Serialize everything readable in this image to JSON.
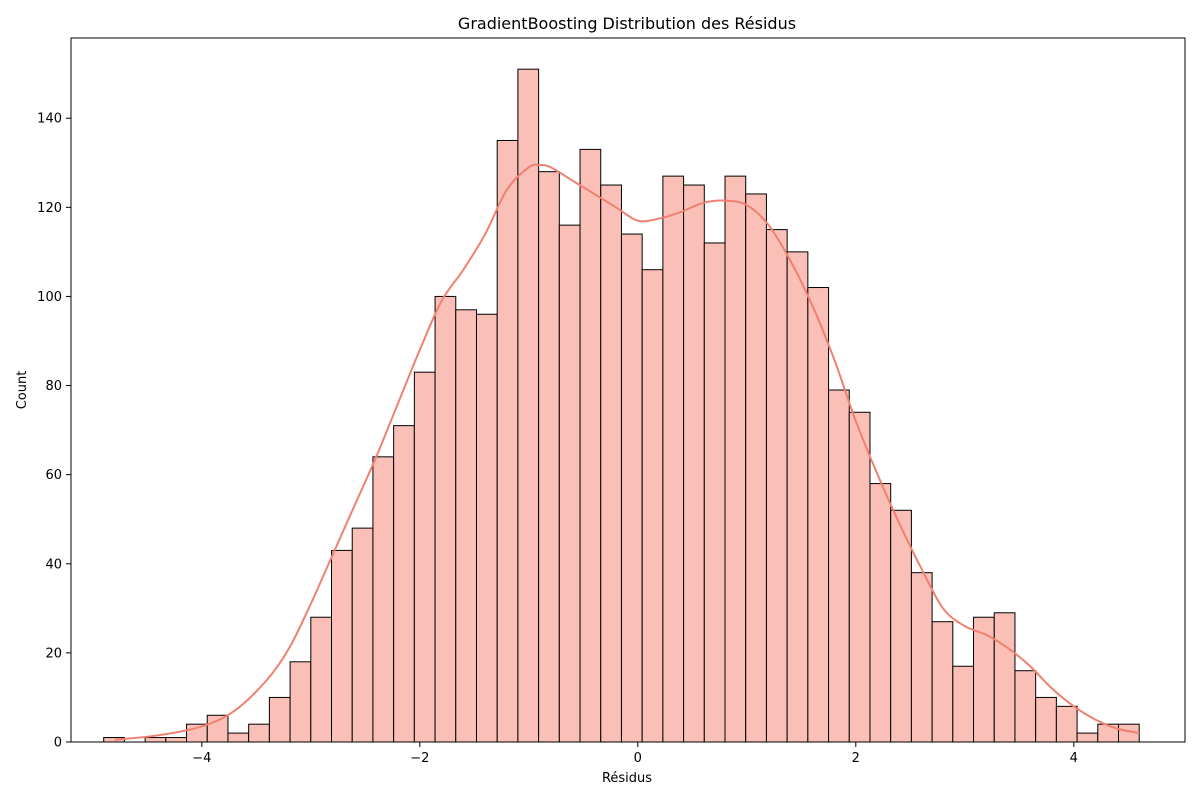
{
  "chart_data": {
    "type": "bar",
    "title": "GradientBoosting Distribution des Résidus",
    "xlabel": "Résidus",
    "ylabel": "Count",
    "xlim": [
      -5.2,
      5.02
    ],
    "ylim": [
      0,
      158
    ],
    "xticks": [
      -4,
      -2,
      0,
      2,
      4
    ],
    "xtick_labels": [
      "−4",
      "−2",
      "0",
      "2",
      "4"
    ],
    "yticks": [
      0,
      20,
      40,
      60,
      80,
      100,
      120,
      140
    ],
    "bin_start": -4.9,
    "bin_width": 0.19,
    "counts": [
      1,
      0,
      1,
      1,
      4,
      6,
      2,
      4,
      10,
      18,
      28,
      43,
      48,
      64,
      71,
      83,
      100,
      97,
      96,
      135,
      151,
      128,
      116,
      133,
      125,
      114,
      106,
      127,
      125,
      112,
      127,
      123,
      115,
      110,
      102,
      79,
      74,
      58,
      52,
      38,
      27,
      17,
      28,
      29,
      16,
      10,
      8,
      2,
      4,
      4
    ],
    "kde": {
      "x": [
        -4.8,
        -4.4,
        -4.0,
        -3.7,
        -3.4,
        -3.2,
        -3.0,
        -2.8,
        -2.6,
        -2.4,
        -2.2,
        -2.0,
        -1.8,
        -1.6,
        -1.4,
        -1.2,
        -1.0,
        -0.9,
        -0.8,
        -0.6,
        -0.4,
        -0.2,
        0.0,
        0.2,
        0.4,
        0.6,
        0.8,
        1.0,
        1.2,
        1.4,
        1.6,
        1.8,
        2.0,
        2.2,
        2.4,
        2.6,
        2.8,
        3.0,
        3.2,
        3.4,
        3.6,
        3.8,
        4.0,
        4.2,
        4.4,
        4.6
      ],
      "y": [
        0.5,
        1.5,
        3.5,
        7,
        14,
        21,
        31,
        42,
        53,
        64,
        76,
        88,
        99,
        106,
        114,
        124,
        129,
        129.5,
        129,
        126,
        123,
        120,
        117,
        117.5,
        119,
        121,
        121.5,
        120.5,
        116,
        108,
        98,
        86,
        72,
        60,
        49,
        39,
        30,
        26,
        24,
        21,
        17,
        12,
        8,
        5,
        3,
        2
      ]
    },
    "bar_fill": "#fac0b8",
    "bar_edge": "#000000",
    "kde_color": "#f08070",
    "grid": false,
    "legend": "none"
  }
}
